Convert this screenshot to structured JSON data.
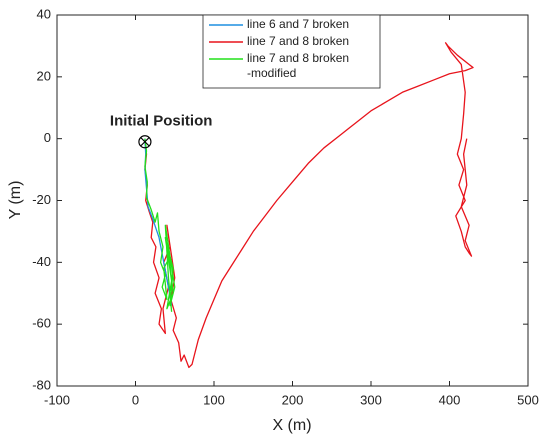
{
  "chart_data": {
    "type": "line",
    "xlabel": "X (m)",
    "ylabel": "Y (m)",
    "annotation": "Initial Position",
    "xlim": [
      -100,
      500
    ],
    "xticks": [
      -100,
      0,
      100,
      200,
      300,
      400,
      500
    ],
    "ylim": [
      -80,
      40
    ],
    "yticks": [
      -80,
      -60,
      -40,
      -20,
      0,
      20,
      40
    ],
    "grid": false,
    "legend": "top",
    "start": {
      "x": 12,
      "y": -1
    },
    "series": [
      {
        "name": "line 6 and 7 broken",
        "color": "#1f8fe0",
        "x": [
          12,
          13,
          12,
          14,
          16,
          22,
          30,
          36,
          42,
          46
        ],
        "values": [
          0,
          -5,
          -10,
          -16,
          -22,
          -26,
          -32,
          -40,
          -48,
          -54
        ]
      },
      {
        "name": "line 7 and 8 broken",
        "color": "#e8141c",
        "x": [
          12,
          14,
          12,
          15,
          13,
          18,
          22,
          20,
          26,
          23,
          30,
          25,
          33,
          30,
          38,
          35,
          42,
          36,
          44,
          40,
          46,
          50,
          45,
          52,
          48,
          55,
          58,
          62,
          68,
          72,
          80,
          90,
          100,
          110,
          120,
          135,
          150,
          165,
          180,
          200,
          220,
          240,
          260,
          280,
          300,
          320,
          340,
          360,
          380,
          400,
          420,
          430,
          425,
          410,
          398,
          395,
          402,
          415,
          420,
          418,
          415,
          410,
          418,
          412,
          420,
          408,
          415,
          420,
          425,
          428,
          420,
          425,
          415,
          422,
          418,
          422
        ],
        "values": [
          -1,
          -5,
          -10,
          -15,
          -20,
          -24,
          -27,
          -32,
          -35,
          -40,
          -45,
          -50,
          -55,
          -60,
          -63,
          -55,
          -48,
          -40,
          -35,
          -28,
          -38,
          -45,
          -52,
          -58,
          -62,
          -66,
          -72,
          -70,
          -74,
          -73,
          -65,
          -58,
          -52,
          -46,
          -42,
          -36,
          -30,
          -25,
          -20,
          -14,
          -8,
          -3,
          1,
          5,
          9,
          12,
          15,
          17,
          19,
          21,
          22,
          23,
          24,
          27,
          30,
          31,
          28,
          24,
          15,
          8,
          0,
          -5,
          -10,
          -15,
          -20,
          -25,
          -30,
          -35,
          -37,
          -38,
          -33,
          -28,
          -22,
          -15,
          -5,
          0
        ]
      },
      {
        "name": "line 7 and 8 broken\n-modified",
        "color": "#22e01a",
        "x": [
          12,
          14,
          12,
          15,
          14,
          20,
          25,
          28,
          30,
          35,
          32,
          38,
          34,
          40,
          36,
          44,
          38,
          46,
          40,
          48,
          42,
          48,
          44,
          50,
          38,
          42,
          46
        ],
        "values": [
          0,
          -4,
          -9,
          -14,
          -19,
          -23,
          -27,
          -24,
          -30,
          -35,
          -40,
          -44,
          -48,
          -52,
          -42,
          -38,
          -32,
          -46,
          -55,
          -50,
          -36,
          -42,
          -54,
          -48,
          -28,
          -45,
          -56
        ]
      }
    ]
  }
}
